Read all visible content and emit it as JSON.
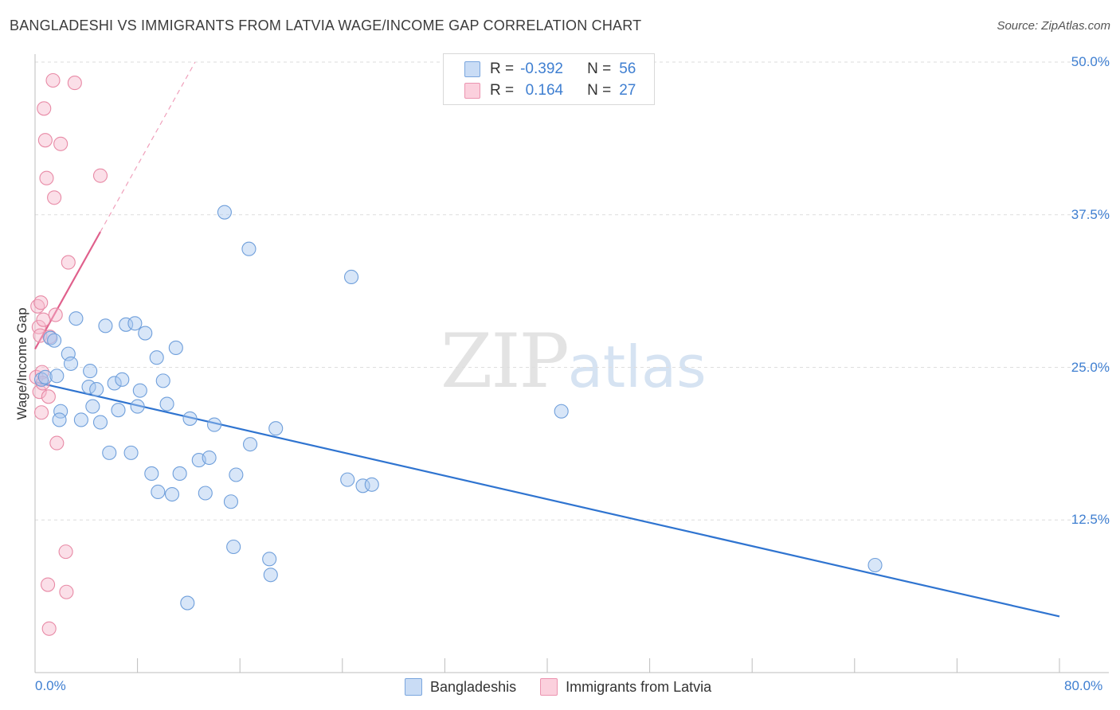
{
  "title": "BANGLADESHI VS IMMIGRANTS FROM LATVIA WAGE/INCOME GAP CORRELATION CHART",
  "source": "Source: ZipAtlas.com",
  "watermark": {
    "zip": "ZIP",
    "atlas": "atlas"
  },
  "legend_top": {
    "rows": [
      {
        "r_label": "R =",
        "r_value": "-0.392",
        "n_label": "N =",
        "n_value": "56",
        "color": "#a9c8f0"
      },
      {
        "r_label": "R =",
        "r_value": "0.164",
        "n_label": "N =",
        "n_value": "27",
        "color": "#f7b8cb"
      }
    ]
  },
  "legend_bottom": [
    {
      "label": "Bangladeshis",
      "color": "#a9c8f0"
    },
    {
      "label": "Immigrants from Latvia",
      "color": "#f7b8cb"
    }
  ],
  "chart_data": {
    "type": "scatter",
    "title": "BANGLADESHI VS IMMIGRANTS FROM LATVIA WAGE/INCOME GAP CORRELATION CHART",
    "xlabel": "",
    "ylabel": "Wage/Income Gap",
    "xlim": [
      0,
      80
    ],
    "ylim": [
      0,
      50
    ],
    "x_tick_labels": [
      "0.0%",
      "80.0%"
    ],
    "y_ticks": [
      12.5,
      25.0,
      37.5,
      50.0
    ],
    "y_tick_labels": [
      "12.5%",
      "25.0%",
      "37.5%",
      "50.0%"
    ],
    "grid": "horizontal dashed",
    "legend_position": "top-center",
    "series": [
      {
        "name": "Bangladeshis",
        "color": "#a9c8f0",
        "stroke": "#6f9fdb",
        "trend": {
          "x": [
            0,
            80
          ],
          "y": [
            23.8,
            4.6
          ],
          "color": "#2f74d0"
        },
        "points": [
          [
            0.5,
            24.0
          ],
          [
            0.8,
            24.2
          ],
          [
            1.2,
            27.4
          ],
          [
            1.5,
            27.2
          ],
          [
            1.7,
            24.3
          ],
          [
            2.0,
            21.4
          ],
          [
            1.9,
            20.7
          ],
          [
            2.6,
            26.1
          ],
          [
            2.8,
            25.3
          ],
          [
            3.2,
            29.0
          ],
          [
            3.6,
            20.7
          ],
          [
            4.2,
            23.4
          ],
          [
            4.3,
            24.7
          ],
          [
            4.5,
            21.8
          ],
          [
            4.8,
            23.2
          ],
          [
            5.1,
            20.5
          ],
          [
            5.5,
            28.4
          ],
          [
            5.8,
            18.0
          ],
          [
            6.2,
            23.7
          ],
          [
            6.5,
            21.5
          ],
          [
            6.8,
            24.0
          ],
          [
            7.1,
            28.5
          ],
          [
            7.5,
            18.0
          ],
          [
            7.8,
            28.6
          ],
          [
            8.0,
            21.8
          ],
          [
            8.2,
            23.1
          ],
          [
            8.6,
            27.8
          ],
          [
            9.1,
            16.3
          ],
          [
            9.5,
            25.8
          ],
          [
            9.6,
            14.8
          ],
          [
            10.0,
            23.9
          ],
          [
            10.3,
            22.0
          ],
          [
            10.7,
            14.6
          ],
          [
            11.0,
            26.6
          ],
          [
            11.3,
            16.3
          ],
          [
            11.9,
            5.7
          ],
          [
            12.1,
            20.8
          ],
          [
            12.8,
            17.4
          ],
          [
            13.3,
            14.7
          ],
          [
            13.6,
            17.6
          ],
          [
            14.0,
            20.3
          ],
          [
            14.8,
            37.7
          ],
          [
            15.3,
            14.0
          ],
          [
            15.5,
            10.3
          ],
          [
            15.7,
            16.2
          ],
          [
            16.7,
            34.7
          ],
          [
            16.8,
            18.7
          ],
          [
            18.3,
            9.3
          ],
          [
            18.4,
            8.0
          ],
          [
            18.8,
            20.0
          ],
          [
            24.4,
            15.8
          ],
          [
            24.7,
            32.4
          ],
          [
            25.6,
            15.3
          ],
          [
            26.3,
            15.4
          ],
          [
            41.1,
            21.4
          ],
          [
            65.6,
            8.8
          ]
        ]
      },
      {
        "name": "Immigrants from Latvia",
        "color": "#f7b8cb",
        "stroke": "#e88aa6",
        "trend": {
          "x": [
            0,
            5.1
          ],
          "y": [
            26.5,
            36.1
          ],
          "color": "#e0608c",
          "extended": {
            "x": [
              5.1,
              12.5
            ],
            "y": [
              36.1,
              50.0
            ]
          }
        },
        "points": [
          [
            0.1,
            24.2
          ],
          [
            0.2,
            30.0
          ],
          [
            0.3,
            28.3
          ],
          [
            0.35,
            23.0
          ],
          [
            0.4,
            27.6
          ],
          [
            0.45,
            30.3
          ],
          [
            0.5,
            21.3
          ],
          [
            0.55,
            24.6
          ],
          [
            0.6,
            23.7
          ],
          [
            0.65,
            28.9
          ],
          [
            0.7,
            46.2
          ],
          [
            0.8,
            43.6
          ],
          [
            0.9,
            40.5
          ],
          [
            1.0,
            7.2
          ],
          [
            1.05,
            22.6
          ],
          [
            1.1,
            3.6
          ],
          [
            1.15,
            27.5
          ],
          [
            1.4,
            48.5
          ],
          [
            1.5,
            38.9
          ],
          [
            1.6,
            29.3
          ],
          [
            1.7,
            18.8
          ],
          [
            2.0,
            43.3
          ],
          [
            2.4,
            9.9
          ],
          [
            2.45,
            6.6
          ],
          [
            2.6,
            33.6
          ],
          [
            3.1,
            48.3
          ],
          [
            5.1,
            40.7
          ]
        ]
      }
    ]
  }
}
